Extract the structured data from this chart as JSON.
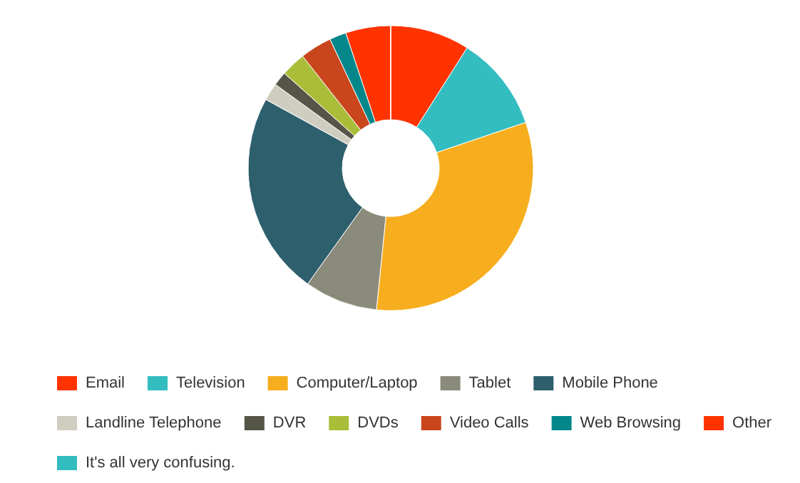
{
  "chart_data": {
    "type": "donut",
    "categories": [
      "Email",
      "Television",
      "Computer/Laptop",
      "Tablet",
      "Mobile Phone",
      "Landline Telephone",
      "DVR",
      "DVDs",
      "Video Calls",
      "Web Browsing",
      "Other",
      "It's all very confusing."
    ],
    "values": [
      9,
      10.8,
      31.8,
      8.3,
      23.1,
      2,
      1.6,
      2.8,
      3.6,
      1.9,
      5.1,
      0
    ],
    "colors": [
      "#ff3300",
      "#33bdc0",
      "#f7ae1e",
      "#8b8b7b",
      "#2e5f6d",
      "#cfcdc0",
      "#555548",
      "#aabd38",
      "#c9461c",
      "#04878a",
      "#ff3300",
      "#33bdc0"
    ],
    "legend": "bottom"
  }
}
